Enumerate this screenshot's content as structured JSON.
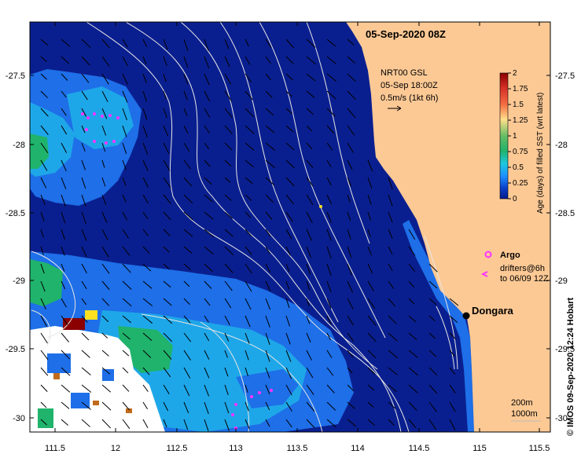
{
  "title": "05-Sep-2020 08Z",
  "current_label": {
    "line1": "NRT00 GSL",
    "line2": "05-Sep 18:00Z",
    "line3": "0.5m/s (1kt 6h)"
  },
  "colorbar": {
    "title": "Age (days) of filled SST (wrt latest)",
    "ticks": [
      "2",
      "1.75",
      "1.5",
      "1.25",
      "1",
      "0.75",
      "0.5",
      "0.25",
      "0"
    ],
    "colors": [
      "#8b0000",
      "#c0392b",
      "#e67e22",
      "#f1c40f",
      "#9acd32",
      "#2ecc71",
      "#1abc9c",
      "#00bfff",
      "#1e90ff",
      "#0033cc",
      "#001a8c"
    ]
  },
  "legend": {
    "argo": "Argo",
    "drifters_line1": "drifters@6h",
    "drifters_line2": "to 06/09 12Z"
  },
  "place": "Dongara",
  "contours": {
    "line1": "200m",
    "line2": "1000m"
  },
  "credit": "© IMOS 09-Sep-2020 12:24 Hobart",
  "axes": {
    "x_ticks": [
      "111.5",
      "12",
      "112.5",
      "113",
      "113.5",
      "114",
      "114.5",
      "115",
      "115.5"
    ],
    "y_ticks": [
      "-27.5",
      "-28",
      "-28.5",
      "-29",
      "-29.5",
      "-30"
    ]
  },
  "colors": {
    "land": "#fcc995",
    "ocean_deep": "#0a1f8f",
    "fresh_blue": "#1e6fe8",
    "cyan": "#1ea7e8",
    "green": "#1fb36b",
    "contour": "#e0e0e0"
  }
}
